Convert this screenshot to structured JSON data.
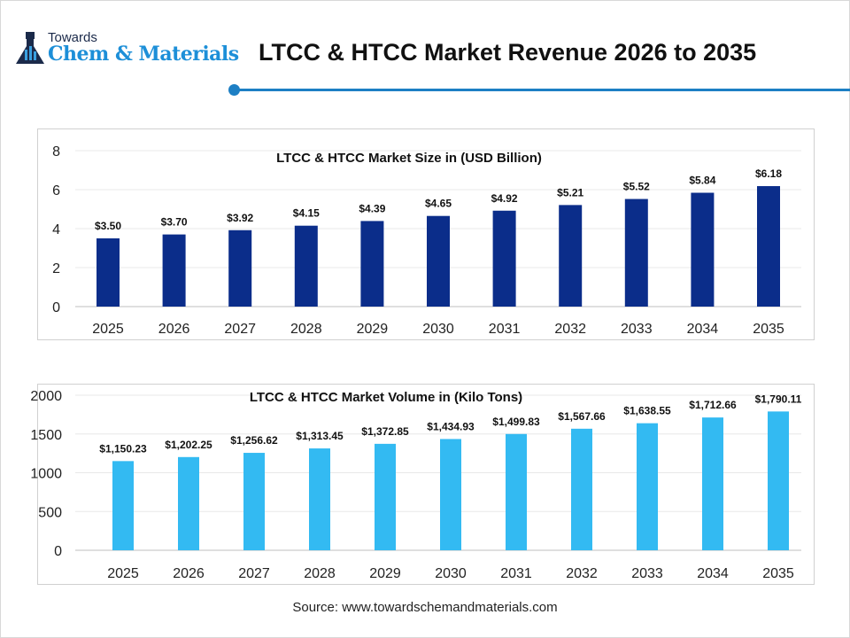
{
  "header": {
    "logo_top": "Towards",
    "logo_main": "Chem & Materials",
    "title": "LTCC & HTCC Market Revenue 2026 to 2035"
  },
  "colors": {
    "accent": "#1d7fc4",
    "chart1_bar": "#0b2d8a",
    "chart2_bar": "#33baf2"
  },
  "source": "Source: www.towardschemandmaterials.com",
  "chart_data": [
    {
      "type": "bar",
      "title": "LTCC & HTCC Market Size in (USD Billion)",
      "categories": [
        "2025",
        "2026",
        "2027",
        "2028",
        "2029",
        "2030",
        "2031",
        "2032",
        "2033",
        "2034",
        "2035"
      ],
      "values": [
        3.5,
        3.7,
        3.92,
        4.15,
        4.39,
        4.65,
        4.92,
        5.21,
        5.52,
        5.84,
        6.18
      ],
      "data_labels": [
        "$3.50",
        "$3.70",
        "$3.92",
        "$4.15",
        "$4.39",
        "$4.65",
        "$4.92",
        "$5.21",
        "$5.52",
        "$5.84",
        "$6.18"
      ],
      "yticks": [
        "0",
        "2",
        "4",
        "6",
        "8"
      ],
      "ylim": [
        0,
        8
      ],
      "grid": true
    },
    {
      "type": "bar",
      "title": "LTCC & HTCC Market Volume in (Kilo Tons)",
      "categories": [
        "2025",
        "2026",
        "2027",
        "2028",
        "2029",
        "2030",
        "2031",
        "2032",
        "2033",
        "2034",
        "2035"
      ],
      "values": [
        1150.23,
        1202.25,
        1256.62,
        1313.45,
        1372.85,
        1434.93,
        1499.83,
        1567.66,
        1638.55,
        1712.66,
        1790.11
      ],
      "data_labels": [
        "$1,150.23",
        "$1,202.25",
        "$1,256.62",
        "$1,313.45",
        "$1,372.85",
        "$1,434.93",
        "$1,499.83",
        "$1,567.66",
        "$1,638.55",
        "$1,712.66",
        "$1,790.11"
      ],
      "yticks": [
        "0",
        "500",
        "1000",
        "1500",
        "2000"
      ],
      "ylim": [
        0,
        2000
      ],
      "grid": true
    }
  ]
}
